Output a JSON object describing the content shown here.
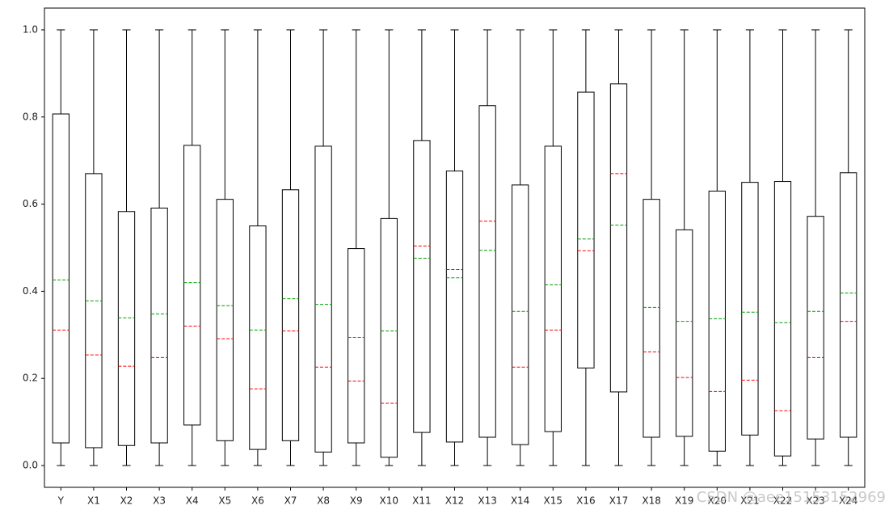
{
  "chart_data": {
    "type": "box",
    "categories": [
      "Y",
      "X1",
      "X2",
      "X3",
      "X4",
      "X5",
      "X6",
      "X7",
      "X8",
      "X9",
      "X10",
      "X11",
      "X12",
      "X13",
      "X14",
      "X15",
      "X16",
      "X17",
      "X18",
      "X19",
      "X20",
      "X21",
      "X22",
      "X23",
      "X24"
    ],
    "whislo": [
      0,
      0,
      0,
      0,
      0,
      0,
      0,
      0,
      0,
      0,
      0,
      0,
      0,
      0,
      0,
      0,
      0,
      0,
      0,
      0,
      0,
      0,
      0,
      0,
      0
    ],
    "q1": [
      0.052,
      0.041,
      0.046,
      0.052,
      0.093,
      0.057,
      0.037,
      0.057,
      0.031,
      0.052,
      0.019,
      0.076,
      0.054,
      0.065,
      0.048,
      0.078,
      0.224,
      0.169,
      0.065,
      0.067,
      0.033,
      0.07,
      0.022,
      0.061,
      0.065
    ],
    "med": [
      0.311,
      0.254,
      0.228,
      0.248,
      0.32,
      0.291,
      0.176,
      0.309,
      0.226,
      0.194,
      0.143,
      0.504,
      0.45,
      0.561,
      0.226,
      0.311,
      0.493,
      0.67,
      0.261,
      0.202,
      0.17,
      0.196,
      0.126,
      0.248,
      0.331
    ],
    "mean": [
      0.426,
      0.378,
      0.339,
      0.348,
      0.42,
      0.367,
      0.311,
      0.383,
      0.37,
      0.294,
      0.309,
      0.476,
      0.431,
      0.494,
      0.354,
      0.415,
      0.52,
      0.552,
      0.363,
      0.331,
      0.337,
      0.352,
      0.328,
      0.354,
      0.396
    ],
    "q3": [
      0.807,
      0.67,
      0.583,
      0.591,
      0.735,
      0.611,
      0.55,
      0.633,
      0.733,
      0.498,
      0.567,
      0.746,
      0.676,
      0.826,
      0.644,
      0.733,
      0.857,
      0.876,
      0.611,
      0.541,
      0.63,
      0.65,
      0.652,
      0.572,
      0.672
    ],
    "whishi": [
      1,
      1,
      1,
      1,
      1,
      1,
      1,
      1,
      1,
      1,
      1,
      1,
      1,
      1,
      1,
      1,
      1,
      1,
      1,
      1,
      1,
      1,
      1,
      1,
      1
    ],
    "median_color": "#ff0000",
    "mean_color": "#00a000",
    "box_color": "#000000",
    "ylim": [
      -0.05,
      1.05
    ],
    "yticks": [
      {
        "value": 0,
        "label": "0.0"
      },
      0.2,
      0.4,
      0.6,
      0.8,
      {
        "value": 1,
        "label": "1.0"
      }
    ],
    "watermark": "CSDN @aee15153152969"
  }
}
